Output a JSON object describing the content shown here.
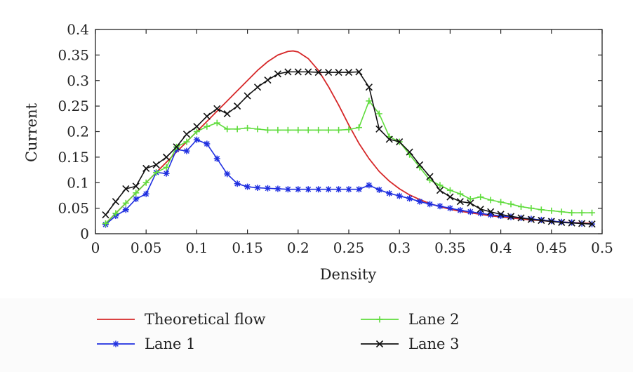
{
  "chart_data": {
    "type": "line",
    "xlabel": "Density",
    "ylabel": "Current",
    "xlim": [
      0,
      0.5
    ],
    "ylim": [
      0,
      0.4
    ],
    "x_ticks": [
      0,
      0.05,
      0.1,
      0.15,
      0.2,
      0.25,
      0.3,
      0.35,
      0.4,
      0.45,
      0.5
    ],
    "x_tick_labels": [
      "0",
      "0.05",
      "0.1",
      "0.15",
      "0.2",
      "0.25",
      "0.3",
      "0.35",
      "0.4",
      "0.45",
      "0.5"
    ],
    "y_ticks": [
      0,
      0.05,
      0.1,
      0.15,
      0.2,
      0.25,
      0.3,
      0.35,
      0.4
    ],
    "y_tick_labels": [
      "0",
      "0.05",
      "0.1",
      "0.15",
      "0.2",
      "0.25",
      "0.3",
      "0.35",
      "0.4"
    ],
    "grid": false,
    "legend_position": "bottom",
    "series": [
      {
        "name": "Theoretical flow",
        "color": "#d62728",
        "marker": "none",
        "x": [
          0.01,
          0.02,
          0.03,
          0.04,
          0.05,
          0.06,
          0.07,
          0.08,
          0.09,
          0.1,
          0.11,
          0.12,
          0.13,
          0.14,
          0.15,
          0.16,
          0.17,
          0.18,
          0.19,
          0.195,
          0.2,
          0.21,
          0.22,
          0.23,
          0.24,
          0.25,
          0.26,
          0.27,
          0.28,
          0.29,
          0.3,
          0.31,
          0.32,
          0.33,
          0.34,
          0.35,
          0.36,
          0.37,
          0.38,
          0.39,
          0.4,
          0.41,
          0.42,
          0.43,
          0.44,
          0.45,
          0.46,
          0.47,
          0.48,
          0.49
        ],
        "y": [
          0.02,
          0.04,
          0.06,
          0.08,
          0.1,
          0.12,
          0.14,
          0.16,
          0.18,
          0.2,
          0.22,
          0.24,
          0.26,
          0.28,
          0.3,
          0.32,
          0.337,
          0.35,
          0.357,
          0.358,
          0.356,
          0.343,
          0.32,
          0.288,
          0.252,
          0.213,
          0.177,
          0.147,
          0.122,
          0.103,
          0.088,
          0.076,
          0.067,
          0.059,
          0.053,
          0.048,
          0.044,
          0.041,
          0.038,
          0.035,
          0.033,
          0.031,
          0.029,
          0.027,
          0.026,
          0.024,
          0.023,
          0.022,
          0.021,
          0.02
        ]
      },
      {
        "name": "Lane 1",
        "color": "#1f2fe0",
        "marker": "asterisk",
        "x": [
          0.01,
          0.02,
          0.03,
          0.04,
          0.05,
          0.06,
          0.07,
          0.08,
          0.09,
          0.1,
          0.11,
          0.12,
          0.13,
          0.14,
          0.15,
          0.16,
          0.17,
          0.18,
          0.19,
          0.2,
          0.21,
          0.22,
          0.23,
          0.24,
          0.25,
          0.26,
          0.27,
          0.28,
          0.29,
          0.3,
          0.31,
          0.32,
          0.33,
          0.34,
          0.35,
          0.36,
          0.37,
          0.38,
          0.39,
          0.4,
          0.41,
          0.42,
          0.43,
          0.44,
          0.45,
          0.46,
          0.47,
          0.48,
          0.49
        ],
        "y": [
          0.018,
          0.035,
          0.047,
          0.068,
          0.078,
          0.12,
          0.118,
          0.165,
          0.162,
          0.184,
          0.176,
          0.147,
          0.117,
          0.098,
          0.092,
          0.09,
          0.089,
          0.088,
          0.087,
          0.087,
          0.087,
          0.087,
          0.087,
          0.087,
          0.087,
          0.087,
          0.095,
          0.086,
          0.079,
          0.074,
          0.069,
          0.063,
          0.058,
          0.054,
          0.05,
          0.046,
          0.043,
          0.04,
          0.037,
          0.035,
          0.033,
          0.031,
          0.029,
          0.027,
          0.025,
          0.023,
          0.022,
          0.02,
          0.019
        ]
      },
      {
        "name": "Lane 2",
        "color": "#5fdc3c",
        "marker": "plus",
        "x": [
          0.01,
          0.02,
          0.03,
          0.04,
          0.05,
          0.06,
          0.07,
          0.08,
          0.09,
          0.1,
          0.11,
          0.12,
          0.13,
          0.14,
          0.15,
          0.16,
          0.17,
          0.18,
          0.19,
          0.2,
          0.21,
          0.22,
          0.23,
          0.24,
          0.25,
          0.26,
          0.27,
          0.28,
          0.29,
          0.3,
          0.31,
          0.32,
          0.33,
          0.34,
          0.35,
          0.36,
          0.37,
          0.38,
          0.39,
          0.4,
          0.41,
          0.42,
          0.43,
          0.44,
          0.45,
          0.46,
          0.47,
          0.48,
          0.49
        ],
        "y": [
          0.02,
          0.04,
          0.06,
          0.08,
          0.1,
          0.12,
          0.13,
          0.17,
          0.18,
          0.2,
          0.21,
          0.217,
          0.205,
          0.205,
          0.207,
          0.205,
          0.203,
          0.203,
          0.203,
          0.203,
          0.203,
          0.203,
          0.203,
          0.203,
          0.204,
          0.208,
          0.26,
          0.235,
          0.19,
          0.18,
          0.155,
          0.13,
          0.105,
          0.095,
          0.085,
          0.078,
          0.068,
          0.072,
          0.066,
          0.062,
          0.058,
          0.053,
          0.05,
          0.047,
          0.045,
          0.043,
          0.041,
          0.041,
          0.041
        ]
      },
      {
        "name": "Lane 3",
        "color": "#111111",
        "marker": "x",
        "x": [
          0.01,
          0.02,
          0.03,
          0.04,
          0.05,
          0.06,
          0.07,
          0.08,
          0.09,
          0.1,
          0.11,
          0.12,
          0.13,
          0.14,
          0.15,
          0.16,
          0.17,
          0.18,
          0.19,
          0.2,
          0.21,
          0.22,
          0.23,
          0.24,
          0.25,
          0.26,
          0.27,
          0.28,
          0.29,
          0.3,
          0.31,
          0.32,
          0.33,
          0.34,
          0.35,
          0.36,
          0.37,
          0.38,
          0.39,
          0.4,
          0.41,
          0.42,
          0.43,
          0.44,
          0.45,
          0.46,
          0.47,
          0.48,
          0.49
        ],
        "y": [
          0.037,
          0.063,
          0.088,
          0.093,
          0.128,
          0.135,
          0.15,
          0.17,
          0.195,
          0.21,
          0.23,
          0.245,
          0.235,
          0.25,
          0.27,
          0.287,
          0.301,
          0.313,
          0.317,
          0.317,
          0.317,
          0.316,
          0.316,
          0.316,
          0.316,
          0.317,
          0.287,
          0.205,
          0.185,
          0.18,
          0.16,
          0.135,
          0.112,
          0.085,
          0.072,
          0.063,
          0.06,
          0.048,
          0.043,
          0.038,
          0.034,
          0.031,
          0.028,
          0.026,
          0.024,
          0.022,
          0.021,
          0.02,
          0.019
        ]
      }
    ]
  }
}
